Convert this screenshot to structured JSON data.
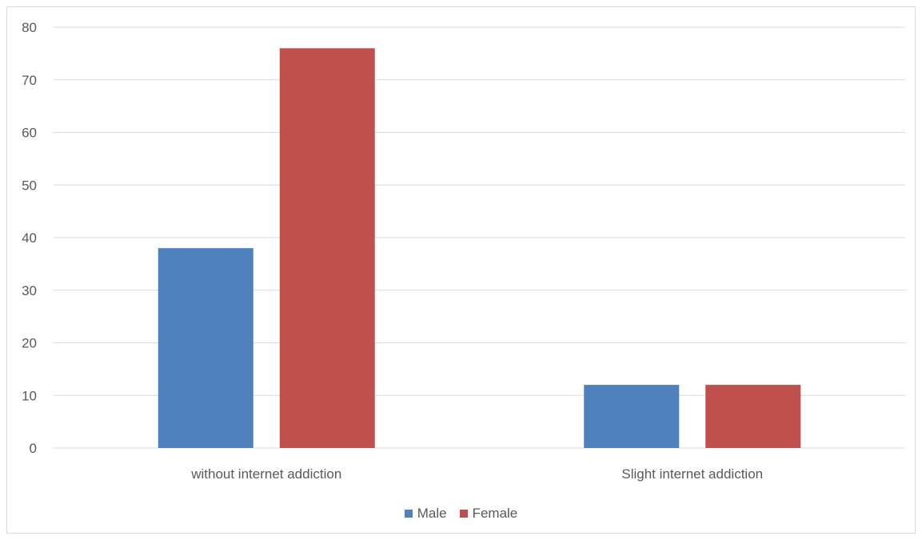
{
  "chart_data": {
    "type": "bar",
    "categories": [
      "without internet addiction",
      "Slight internet addiction"
    ],
    "series": [
      {
        "name": "Male",
        "values": [
          38,
          12
        ],
        "color": "#4f81bd"
      },
      {
        "name": "Female",
        "values": [
          76,
          12
        ],
        "color": "#c0504d"
      }
    ],
    "ylim": [
      0,
      80
    ],
    "yticks": [
      "0",
      "10",
      "20",
      "30",
      "40",
      "50",
      "60",
      "70",
      "80"
    ],
    "grid": true,
    "legend_position": "bottom",
    "title": "",
    "xlabel": "",
    "ylabel": ""
  }
}
